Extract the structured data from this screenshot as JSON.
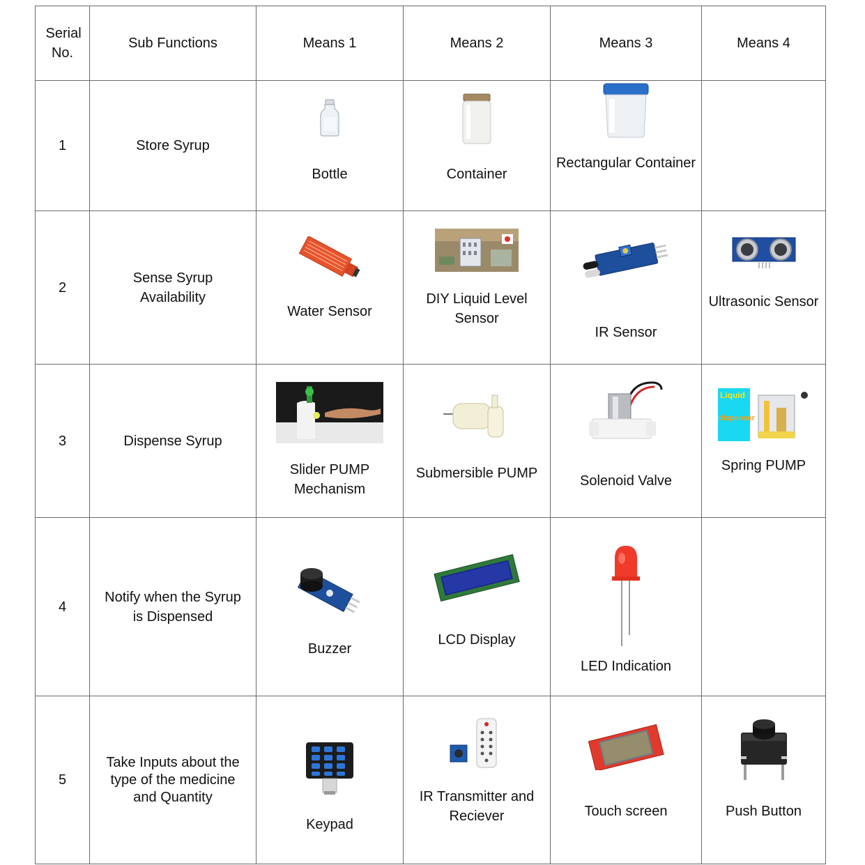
{
  "header": {
    "serial": "Serial No.",
    "sub_functions": "Sub Functions",
    "means1": "Means 1",
    "means2": "Means 2",
    "means3": "Means 3",
    "means4": "Means 4"
  },
  "rows": [
    {
      "serial": "1",
      "function": "Store Syrup",
      "means": [
        {
          "label": "Bottle",
          "icon": "bottle-icon"
        },
        {
          "label": "Container",
          "icon": "jar-icon"
        },
        {
          "label": "Rectangular Container",
          "icon": "rectangular-container-icon"
        },
        {
          "label": "",
          "icon": ""
        }
      ]
    },
    {
      "serial": "2",
      "function": "Sense Syrup Availability",
      "means": [
        {
          "label": "Water Sensor",
          "icon": "water-sensor-icon"
        },
        {
          "label": "DIY Liquid Level Sensor",
          "icon": "liquid-level-sensor-icon"
        },
        {
          "label": "IR Sensor",
          "icon": "ir-sensor-icon"
        },
        {
          "label": "Ultrasonic Sensor",
          "icon": "ultrasonic-sensor-icon"
        }
      ]
    },
    {
      "serial": "3",
      "function": "Dispense Syrup",
      "means": [
        {
          "label": "Slider PUMP Mechanism",
          "icon": "hand-sanitizer-pump-icon"
        },
        {
          "label": "Submersible PUMP",
          "icon": "submersible-pump-icon"
        },
        {
          "label": "Solenoid Valve",
          "icon": "solenoid-valve-icon"
        },
        {
          "label": "Spring PUMP",
          "icon": "liquid-dispenser-icon",
          "image_text_top": "Liquid",
          "image_text_bottom": "dispenser"
        }
      ]
    },
    {
      "serial": "4",
      "function": "Notify when the Syrup is Dispensed",
      "means": [
        {
          "label": "Buzzer",
          "icon": "buzzer-module-icon"
        },
        {
          "label": "LCD Display",
          "icon": "lcd-display-icon"
        },
        {
          "label": "LED Indication",
          "icon": "led-icon"
        },
        {
          "label": "",
          "icon": ""
        }
      ]
    },
    {
      "serial": "5",
      "function": "Take Inputs about the type of the medicine and Quantity",
      "means": [
        {
          "label": "Keypad",
          "icon": "keypad-icon"
        },
        {
          "label": "IR Transmitter and Reciever",
          "icon": "ir-remote-icon"
        },
        {
          "label": "Touch screen",
          "icon": "touch-screen-icon"
        },
        {
          "label": "Push Button",
          "icon": "push-button-icon"
        }
      ]
    }
  ],
  "colors": {
    "border": "#6a6a6a",
    "led_red": "#f03a2a",
    "sensor_orange": "#e8532b",
    "pcb_blue": "#1e4f9c",
    "lcd_green": "#2f7a3a"
  }
}
